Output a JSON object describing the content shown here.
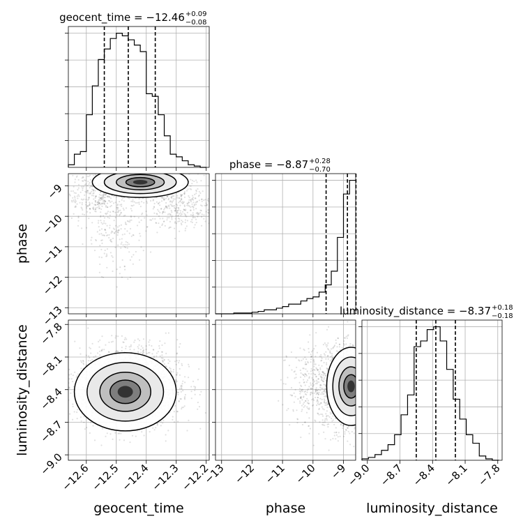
{
  "chart_data": {
    "type": "corner",
    "parameters": [
      "geocent_time",
      "phase",
      "luminosity_distance"
    ],
    "axis_labels": {
      "geocent_time": "geocent_time",
      "phase": "phase",
      "luminosity_distance": "luminosity_distance"
    },
    "ranges": {
      "geocent_time": [
        -12.66,
        -12.19
      ],
      "phase": [
        -13.2,
        -8.6
      ],
      "luminosity_distance": [
        -9.05,
        -7.76
      ]
    },
    "ticks": {
      "geocent_time": [
        -12.6,
        -12.5,
        -12.4,
        -12.3,
        -12.2
      ],
      "phase": [
        -13,
        -12,
        -11,
        -10,
        -9
      ],
      "luminosity_distance": [
        -9.0,
        -8.7,
        -8.4,
        -8.1,
        -7.8
      ]
    },
    "tick_labels": {
      "geocent_time": [
        "−12.6",
        "−12.5",
        "−12.4",
        "−12.3",
        "−12.2"
      ],
      "phase": [
        "−13",
        "−12",
        "−11",
        "−10",
        "−9"
      ],
      "luminosity_distance": [
        "−9.0",
        "−8.7",
        "−8.4",
        "−8.1",
        "−7.8"
      ]
    },
    "titles": {
      "geocent_time": {
        "base": "geocent_time = −12.46",
        "plus": "+0.09",
        "minus": "−0.08"
      },
      "phase": {
        "base": "phase = −8.87",
        "plus": "+0.28",
        "minus": "−0.70"
      },
      "luminosity_distance": {
        "base": "luminosity_distance = −8.37",
        "plus": "+0.18",
        "minus": "−0.18"
      }
    },
    "quantiles": {
      "geocent_time": [
        -12.54,
        -12.46,
        -12.37
      ],
      "phase": [
        -9.57,
        -8.87,
        -8.59
      ],
      "luminosity_distance": [
        -8.55,
        -8.37,
        -8.19
      ]
    },
    "histograms": {
      "geocent_time": {
        "edges": [
          -12.66,
          -12.64,
          -12.62,
          -12.6,
          -12.58,
          -12.56,
          -12.54,
          -12.52,
          -12.5,
          -12.48,
          -12.46,
          -12.44,
          -12.42,
          -12.4,
          -12.38,
          -12.36,
          -12.34,
          -12.32,
          -12.3,
          -12.28,
          -12.26,
          -12.24,
          -12.22,
          -12.2
        ],
        "counts": [
          2,
          10,
          12,
          40,
          62,
          82,
          90,
          98,
          102,
          100,
          97,
          93,
          88,
          56,
          54,
          40,
          24,
          10,
          8,
          5,
          2,
          1,
          0
        ]
      },
      "phase": {
        "edges": [
          -13.2,
          -13.0,
          -12.8,
          -12.6,
          -12.4,
          -12.2,
          -12.0,
          -11.8,
          -11.6,
          -11.4,
          -11.2,
          -11.0,
          -10.8,
          -10.6,
          -10.4,
          -10.2,
          -10.0,
          -9.8,
          -9.6,
          -9.4,
          -9.2,
          -9.0,
          -8.8,
          -8.6
        ],
        "counts": [
          0,
          0,
          0,
          1,
          1,
          1,
          2,
          3,
          5,
          5,
          7,
          9,
          12,
          12,
          16,
          19,
          21,
          27,
          36,
          53,
          95,
          149,
          166
        ]
      },
      "luminosity_distance": {
        "edges": [
          -9.05,
          -8.99,
          -8.93,
          -8.87,
          -8.81,
          -8.75,
          -8.69,
          -8.63,
          -8.57,
          -8.51,
          -8.45,
          -8.39,
          -8.33,
          -8.27,
          -8.21,
          -8.15,
          -8.09,
          -8.03,
          -7.97,
          -7.91,
          -7.85,
          -7.79
        ],
        "counts": [
          1,
          2,
          4,
          7,
          11,
          18,
          32,
          46,
          80,
          84,
          92,
          94,
          84,
          64,
          43,
          29,
          18,
          12,
          3,
          1,
          0
        ]
      }
    },
    "density_2d": [
      {
        "x": "geocent_time",
        "y": "phase",
        "peak": [
          -12.42,
          -8.88
        ],
        "blobs": [
          {
            "cx": -12.44,
            "cy": -8.9,
            "sx": 0.08,
            "sy": 0.25,
            "n": 900
          },
          {
            "cx": -12.56,
            "cy": -9.4,
            "sx": 0.05,
            "sy": 0.35,
            "n": 260
          },
          {
            "cx": -12.5,
            "cy": -10.6,
            "sx": 0.05,
            "sy": 0.7,
            "n": 200
          },
          {
            "cx": -12.28,
            "cy": -9.7,
            "sx": 0.07,
            "sy": 0.35,
            "n": 360
          }
        ]
      },
      {
        "x": "geocent_time",
        "y": "luminosity_distance",
        "peak": [
          -12.47,
          -8.42
        ],
        "blobs": [
          {
            "cx": -12.46,
            "cy": -8.37,
            "sx": 0.085,
            "sy": 0.18,
            "n": 2200
          }
        ]
      },
      {
        "x": "phase",
        "y": "luminosity_distance",
        "peak": [
          -8.75,
          -8.37
        ],
        "blobs": [
          {
            "cx": -8.7,
            "cy": -8.37,
            "sx": 0.4,
            "sy": 0.18,
            "n": 1200
          },
          {
            "cx": -9.6,
            "cy": -8.37,
            "sx": 0.6,
            "sy": 0.2,
            "n": 600
          }
        ]
      }
    ]
  }
}
